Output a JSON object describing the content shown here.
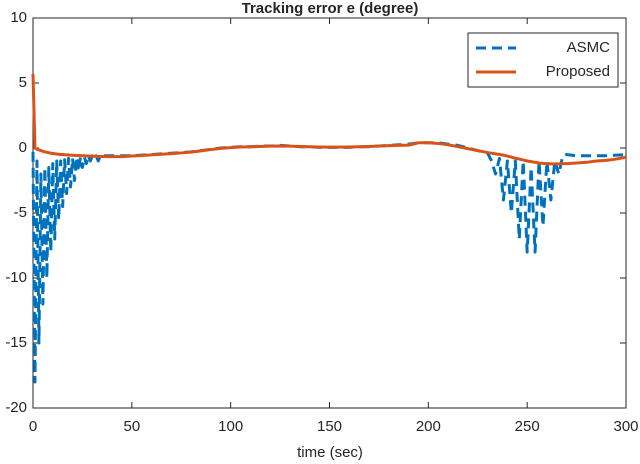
{
  "chart_data": {
    "type": "line",
    "title": "Tracking error e (degree)",
    "x_label": "time (sec)",
    "x": [
      0,
      1,
      2,
      3,
      4,
      5,
      6,
      7,
      8,
      9,
      10,
      11,
      12,
      13,
      14,
      15,
      16,
      17,
      18,
      19,
      20,
      21,
      22,
      23,
      24,
      25,
      26,
      27,
      28,
      29,
      30,
      31,
      32,
      33,
      34,
      35,
      36,
      37,
      38,
      39,
      40,
      45,
      50,
      55,
      60,
      65,
      70,
      75,
      80,
      85,
      90,
      95,
      100,
      105,
      110,
      115,
      120,
      125,
      130,
      135,
      140,
      145,
      150,
      155,
      160,
      165,
      170,
      175,
      180,
      185,
      190,
      195,
      200,
      205,
      210,
      215,
      220,
      225,
      230,
      232,
      234,
      236,
      238,
      240,
      242,
      244,
      246,
      248,
      250,
      252,
      254,
      256,
      258,
      260,
      262,
      264,
      266,
      268,
      270,
      275,
      280,
      285,
      290,
      295,
      300
    ],
    "series": [
      {
        "name": "ASMC",
        "color": "#0072bd",
        "dashed": true,
        "values": [
          -0.3,
          -18,
          -1,
          -15,
          -2,
          -12,
          -1.5,
          -10,
          -1.5,
          -8,
          -1.2,
          -7,
          -1,
          -5.5,
          -1,
          -4.5,
          -0.9,
          -3.5,
          -0.8,
          -3,
          -0.8,
          -2.5,
          -0.7,
          -1.8,
          -0.7,
          -1.5,
          -0.7,
          -1.2,
          -0.6,
          -1,
          -0.6,
          -0.8,
          -0.6,
          -1,
          -0.6,
          -0.7,
          -0.6,
          -0.6,
          -0.6,
          -0.6,
          -0.6,
          -0.6,
          -0.6,
          -0.55,
          -0.5,
          -0.45,
          -0.4,
          -0.35,
          -0.3,
          -0.2,
          -0.1,
          0,
          0.05,
          0.1,
          0.1,
          0.15,
          0.15,
          0.2,
          0.15,
          0.1,
          0.1,
          0.05,
          0.05,
          0.05,
          0.05,
          0.1,
          0.1,
          0.15,
          0.2,
          0.25,
          0.3,
          0.4,
          0.4,
          0.4,
          0.3,
          0.2,
          0,
          -0.2,
          -0.4,
          -1,
          -2,
          -0.8,
          -4,
          -1,
          -5,
          -1,
          -7,
          -1,
          -8,
          -1.5,
          -8,
          -1,
          -6,
          -1,
          -4,
          -1,
          -2,
          -0.6,
          -0.5,
          -0.6,
          -0.6,
          -0.6,
          -0.6,
          -0.55,
          -0.5
        ]
      },
      {
        "name": "Proposed",
        "color": "#d95319",
        "dashed": false,
        "values": [
          5.7,
          0,
          -0.1,
          -0.15,
          -0.2,
          -0.25,
          -0.3,
          -0.33,
          -0.36,
          -0.4,
          -0.42,
          -0.44,
          -0.46,
          -0.48,
          -0.5,
          -0.5,
          -0.52,
          -0.53,
          -0.54,
          -0.55,
          -0.56,
          -0.57,
          -0.58,
          -0.58,
          -0.59,
          -0.6,
          -0.6,
          -0.61,
          -0.62,
          -0.62,
          -0.63,
          -0.63,
          -0.64,
          -0.64,
          -0.65,
          -0.65,
          -0.65,
          -0.66,
          -0.66,
          -0.66,
          -0.66,
          -0.66,
          -0.62,
          -0.58,
          -0.53,
          -0.48,
          -0.43,
          -0.38,
          -0.32,
          -0.22,
          -0.12,
          -0.03,
          0.03,
          0.08,
          0.1,
          0.12,
          0.14,
          0.15,
          0.14,
          0.12,
          0.1,
          0.08,
          0.07,
          0.07,
          0.08,
          0.1,
          0.12,
          0.15,
          0.18,
          0.2,
          0.22,
          0.4,
          0.4,
          0.35,
          0.25,
          0.1,
          -0.05,
          -0.2,
          -0.35,
          -0.4,
          -0.45,
          -0.5,
          -0.55,
          -0.62,
          -0.7,
          -0.78,
          -0.85,
          -0.92,
          -1,
          -1.05,
          -1.1,
          -1.15,
          -1.18,
          -1.2,
          -1.22,
          -1.22,
          -1.22,
          -1.2,
          -1.2,
          -1.15,
          -1.1,
          -1.0,
          -0.95,
          -0.85,
          -0.7
        ]
      }
    ],
    "xlim": [
      0,
      300
    ],
    "xticks": [
      0,
      50,
      100,
      150,
      200,
      250,
      300
    ],
    "ylim": [
      -20,
      10
    ],
    "yticks": [
      -20,
      -15,
      -10,
      -5,
      0,
      5,
      10
    ],
    "legend": "upper right",
    "grid": false
  }
}
